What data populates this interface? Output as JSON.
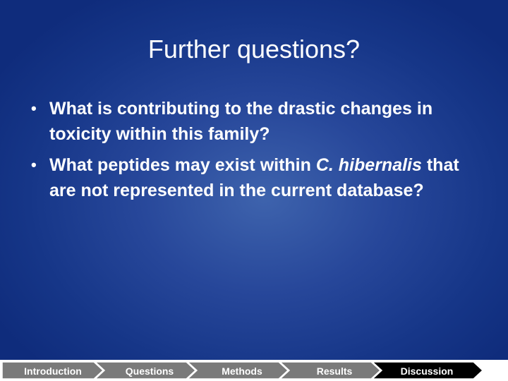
{
  "slide": {
    "title": "Further questions?",
    "bullets": [
      {
        "text": "What is contributing to the drastic changes in toxicity within this family?"
      },
      {
        "prefix": "What peptides may exist within ",
        "italic": "C. hibernalis",
        "suffix": " that are not represented in the current database?"
      }
    ],
    "bullet_glyph": "•"
  },
  "navbar": {
    "items": [
      {
        "label": "Introduction",
        "color": "#7a7a7a"
      },
      {
        "label": "Questions",
        "color": "#7a7a7a"
      },
      {
        "label": "Methods",
        "color": "#7a7a7a"
      },
      {
        "label": "Results",
        "color": "#7a7a7a"
      },
      {
        "label": "Discussion",
        "color": "#000000",
        "active": true
      }
    ]
  }
}
